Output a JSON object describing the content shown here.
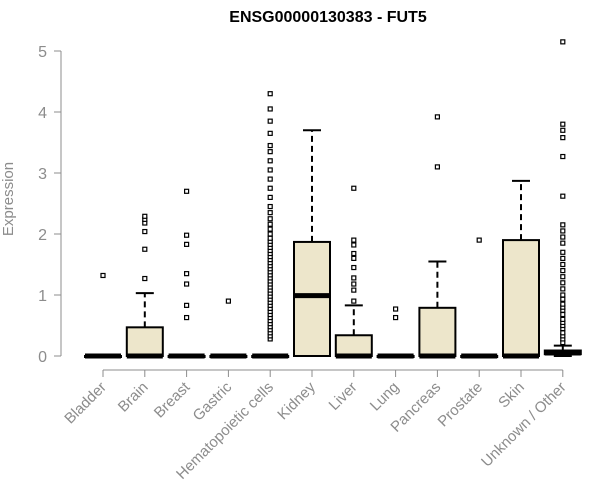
{
  "chart_data": {
    "type": "box",
    "title": "ENSG00000130383 - FUT5",
    "ylabel": "Expression",
    "ylim": [
      0,
      5.2
    ],
    "yticks": [
      0,
      1,
      2,
      3,
      4,
      5
    ],
    "grid": false,
    "colors": {
      "box_fill": "#ede6cb",
      "outline": "#000000",
      "axis_text": "#8c8c8c"
    },
    "categories": [
      "Bladder",
      "Brain",
      "Breast",
      "Gastric",
      "Hematopoietic cells",
      "Kidney",
      "Liver",
      "Lung",
      "Pancreas",
      "Prostate",
      "Skin",
      "Unknown / Other"
    ],
    "boxes": [
      {
        "q1": 0,
        "median": 0,
        "q3": 0,
        "whisker_low": 0,
        "whisker_high": 0,
        "outliers": [
          1.32
        ]
      },
      {
        "q1": 0,
        "median": 0,
        "q3": 0.47,
        "whisker_low": 0,
        "whisker_high": 1.03,
        "outliers": [
          1.27,
          1.75,
          2.04,
          2.18,
          2.24,
          2.29
        ]
      },
      {
        "q1": 0,
        "median": 0,
        "q3": 0,
        "whisker_low": 0,
        "whisker_high": 0,
        "outliers": [
          0.63,
          0.83,
          1.18,
          1.35,
          1.83,
          1.98,
          2.7
        ]
      },
      {
        "q1": 0,
        "median": 0,
        "q3": 0,
        "whisker_low": 0,
        "whisker_high": 0,
        "outliers": [
          0.9
        ]
      },
      {
        "q1": 0,
        "median": 0,
        "q3": 0,
        "whisker_low": 0,
        "whisker_high": 0,
        "outliers": [
          0.28,
          0.33,
          0.38,
          0.43,
          0.48,
          0.53,
          0.58,
          0.63,
          0.68,
          0.73,
          0.78,
          0.83,
          0.88,
          0.93,
          0.98,
          1.03,
          1.08,
          1.13,
          1.18,
          1.23,
          1.28,
          1.33,
          1.38,
          1.43,
          1.48,
          1.53,
          1.58,
          1.63,
          1.68,
          1.73,
          1.78,
          1.83,
          1.88,
          1.93,
          2.0,
          2.08,
          2.16,
          2.25,
          2.35,
          2.45,
          2.6,
          2.75,
          2.9,
          3.05,
          3.2,
          3.35,
          3.45,
          3.65,
          3.85,
          4.05,
          4.3
        ]
      },
      {
        "q1": 0,
        "median": 0.99,
        "q3": 1.87,
        "whisker_low": 0,
        "whisker_high": 3.7,
        "outliers": []
      },
      {
        "q1": 0,
        "median": 0,
        "q3": 0.34,
        "whisker_low": 0,
        "whisker_high": 0.83,
        "outliers": [
          0.9,
          1.08,
          1.18,
          1.28,
          1.45,
          1.6,
          1.68,
          1.82,
          1.9,
          2.75
        ]
      },
      {
        "q1": 0,
        "median": 0,
        "q3": 0,
        "whisker_low": 0,
        "whisker_high": 0,
        "outliers": [
          0.63,
          0.77
        ]
      },
      {
        "q1": 0,
        "median": 0,
        "q3": 0.79,
        "whisker_low": 0,
        "whisker_high": 1.55,
        "outliers": [
          3.1,
          3.92
        ]
      },
      {
        "q1": 0,
        "median": 0,
        "q3": 0,
        "whisker_low": 0,
        "whisker_high": 0,
        "outliers": [
          1.9
        ]
      },
      {
        "q1": 0,
        "median": 0,
        "q3": 1.9,
        "whisker_low": 0,
        "whisker_high": 2.87,
        "outliers": []
      },
      {
        "q1": 0.03,
        "median": 0.05,
        "q3": 0.09,
        "whisker_low": 0,
        "whisker_high": 0.17,
        "outliers": [
          0.22,
          0.28,
          0.33,
          0.38,
          0.45,
          0.5,
          0.55,
          0.6,
          0.68,
          0.75,
          0.8,
          0.85,
          0.93,
          1.0,
          1.1,
          1.2,
          1.3,
          1.4,
          1.5,
          1.6,
          1.7,
          1.85,
          1.95,
          2.05,
          2.15,
          2.62,
          3.27,
          3.58,
          3.7,
          3.8,
          5.15
        ]
      }
    ]
  }
}
